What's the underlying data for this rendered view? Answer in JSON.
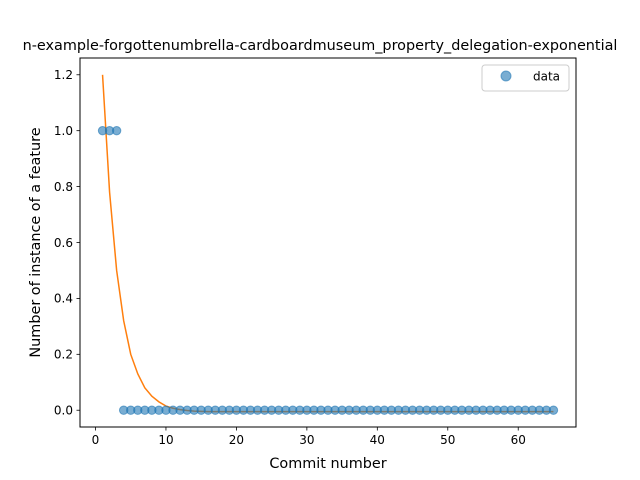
{
  "chart_data": {
    "type": "scatter",
    "title": "n-example-forgottenumbrella-cardboardmuseum_property_delegation-exponential",
    "xlabel": "Commit number",
    "ylabel": "Number of instance of a feature",
    "xlim": [
      -2.2,
      68.2
    ],
    "ylim": [
      -0.06,
      1.26
    ],
    "xticks": [
      0,
      10,
      20,
      30,
      40,
      50,
      60
    ],
    "yticks": [
      0.0,
      0.2,
      0.4,
      0.6,
      0.8,
      1.0,
      1.2
    ],
    "xtick_labels": [
      "0",
      "10",
      "20",
      "30",
      "40",
      "50",
      "60"
    ],
    "ytick_labels": [
      "0.0",
      "0.2",
      "0.4",
      "0.6",
      "0.8",
      "1.0",
      "1.2"
    ],
    "grid": false,
    "legend_position": "top-right",
    "series": [
      {
        "name": "data",
        "kind": "scatter",
        "color": "#1f77b4",
        "x": [
          1,
          2,
          3,
          4,
          5,
          6,
          7,
          8,
          9,
          10,
          11,
          12,
          13,
          14,
          15,
          16,
          17,
          18,
          19,
          20,
          21,
          22,
          23,
          24,
          25,
          26,
          27,
          28,
          29,
          30,
          31,
          32,
          33,
          34,
          35,
          36,
          37,
          38,
          39,
          40,
          41,
          42,
          43,
          44,
          45,
          46,
          47,
          48,
          49,
          50,
          51,
          52,
          53,
          54,
          55,
          56,
          57,
          58,
          59,
          60,
          61,
          62,
          63,
          64,
          65
        ],
        "y": [
          1,
          1,
          1,
          0,
          0,
          0,
          0,
          0,
          0,
          0,
          0,
          0,
          0,
          0,
          0,
          0,
          0,
          0,
          0,
          0,
          0,
          0,
          0,
          0,
          0,
          0,
          0,
          0,
          0,
          0,
          0,
          0,
          0,
          0,
          0,
          0,
          0,
          0,
          0,
          0,
          0,
          0,
          0,
          0,
          0,
          0,
          0,
          0,
          0,
          0,
          0,
          0,
          0,
          0,
          0,
          0,
          0,
          0,
          0,
          0,
          0,
          0,
          0,
          0,
          0
        ]
      },
      {
        "kind": "line",
        "color": "#ff7f0e",
        "x": [
          1,
          2,
          3,
          4,
          5,
          6,
          7,
          8,
          9,
          10,
          11,
          12,
          13,
          14,
          15,
          16,
          17,
          18,
          19,
          20,
          21,
          22,
          23,
          24,
          25,
          26,
          27,
          28,
          29,
          30,
          31,
          32,
          33,
          34,
          35,
          36,
          37,
          38,
          39,
          40,
          41,
          42,
          43,
          44,
          45,
          46,
          47,
          48,
          49,
          50,
          51,
          52,
          53,
          54,
          55,
          56,
          57,
          58,
          59,
          60,
          61,
          62,
          63,
          64,
          65
        ],
        "y": [
          1.2,
          0.78,
          0.5,
          0.32,
          0.2,
          0.13,
          0.08,
          0.05,
          0.03,
          0.015,
          0.007,
          0.002,
          -0.001,
          -0.003,
          -0.004,
          -0.005,
          -0.005,
          -0.005,
          -0.005,
          -0.005,
          -0.005,
          -0.005,
          -0.005,
          -0.005,
          -0.005,
          -0.005,
          -0.005,
          -0.005,
          -0.005,
          -0.005,
          -0.005,
          -0.005,
          -0.005,
          -0.005,
          -0.005,
          -0.005,
          -0.005,
          -0.005,
          -0.005,
          -0.005,
          -0.005,
          -0.005,
          -0.005,
          -0.005,
          -0.005,
          -0.005,
          -0.005,
          -0.005,
          -0.005,
          -0.005,
          -0.005,
          -0.005,
          -0.005,
          -0.005,
          -0.005,
          -0.005,
          -0.005,
          -0.005,
          -0.005,
          -0.005,
          -0.005,
          -0.005,
          -0.005,
          -0.005,
          -0.005
        ]
      }
    ]
  }
}
